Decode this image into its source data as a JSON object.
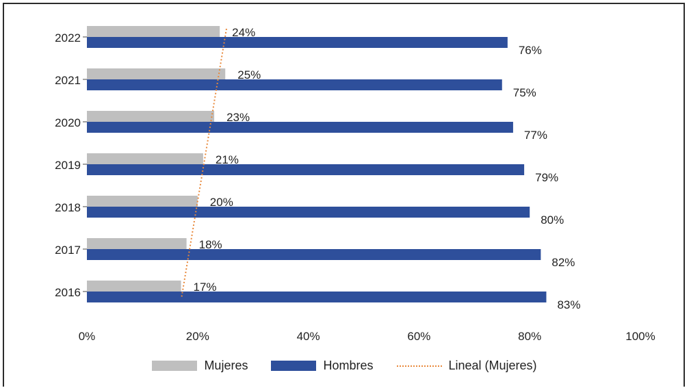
{
  "chart_data": {
    "type": "bar",
    "orientation": "horizontal",
    "categories": [
      "2022",
      "2021",
      "2020",
      "2019",
      "2018",
      "2017",
      "2016"
    ],
    "series": [
      {
        "name": "Mujeres",
        "values": [
          24,
          25,
          23,
          21,
          20,
          18,
          17
        ],
        "labels": [
          "24%",
          "25%",
          "23%",
          "21%",
          "20%",
          "18%",
          "17%"
        ],
        "color": "#bfbfbf"
      },
      {
        "name": "Hombres",
        "values": [
          76,
          75,
          77,
          79,
          80,
          82,
          83
        ],
        "labels": [
          "76%",
          "75%",
          "77%",
          "79%",
          "80%",
          "82%",
          "83%"
        ],
        "color": "#2e4f9b"
      }
    ],
    "trendline": {
      "name": "Lineal (Mujeres)",
      "series": "Mujeres",
      "type": "linear",
      "color": "#e8883a",
      "style": "dotted"
    },
    "xlim": [
      0,
      100
    ],
    "xticks": [
      "0%",
      "20%",
      "40%",
      "60%",
      "80%",
      "100%"
    ],
    "grid": false,
    "legend_position": "bottom"
  }
}
